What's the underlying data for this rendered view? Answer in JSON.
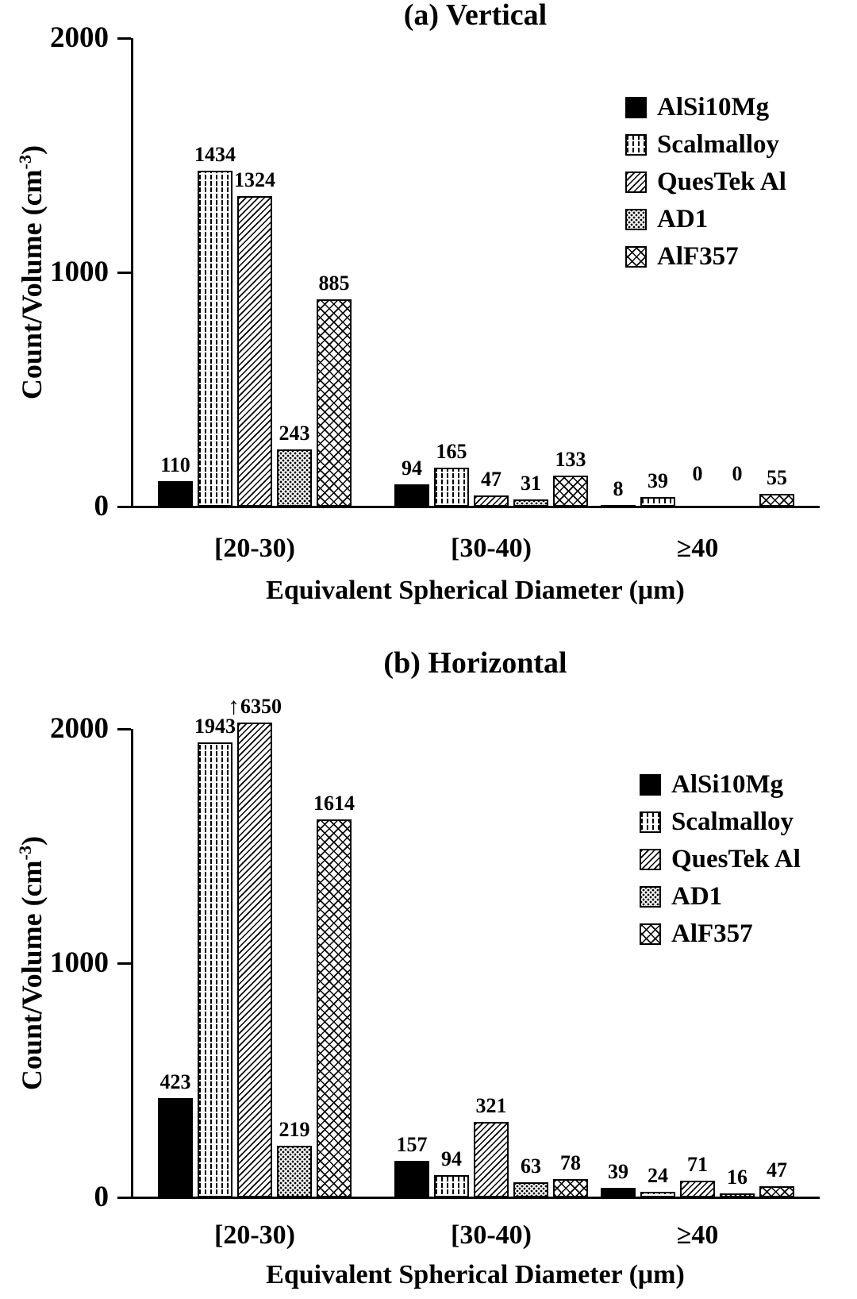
{
  "figure": {
    "background_color": "#ffffff",
    "ink_color": "#000000"
  },
  "chart_data": [
    {
      "type": "bar",
      "title": "(a) Vertical",
      "xlabel": "Equivalent Spherical Diameter (μm)",
      "ylabel_base": "Count/Volume (cm",
      "ylabel_sup": "-3",
      "ylabel_close": ")",
      "ymax": 2000,
      "grid": false,
      "legend_position": "top-right",
      "yticks": [
        {
          "value": 2000,
          "label": "2000"
        },
        {
          "value": 1000,
          "label": "1000"
        },
        {
          "value": 0,
          "label": "0"
        }
      ],
      "categories": [
        "[20-30)",
        "[30-40)",
        "≥40"
      ],
      "series": [
        {
          "name": "AlSi10Mg",
          "pattern": "solid-black",
          "values": [
            110,
            94,
            8
          ]
        },
        {
          "name": "Scalmalloy",
          "pattern": "dashed-columns",
          "values": [
            1434,
            165,
            39
          ]
        },
        {
          "name": "QuesTek Al",
          "pattern": "diagonal-hatch",
          "values": [
            1324,
            47,
            0
          ]
        },
        {
          "name": "AD1",
          "pattern": "dense-speckle",
          "values": [
            243,
            31,
            0
          ]
        },
        {
          "name": "AlF357",
          "pattern": "cross-hatch",
          "values": [
            885,
            133,
            55
          ]
        }
      ]
    },
    {
      "type": "bar",
      "title": "(b) Horizontal",
      "xlabel": "Equivalent Spherical Diameter (μm)",
      "ylabel_base": "Count/Volume (cm",
      "ylabel_sup": "-3",
      "ylabel_close": ")",
      "ymax": 2000,
      "grid": false,
      "legend_position": "top-right",
      "yticks": [
        {
          "value": 2000,
          "label": "2000"
        },
        {
          "value": 1000,
          "label": "1000"
        },
        {
          "value": 0,
          "label": "0"
        }
      ],
      "categories": [
        "[20-30)",
        "[30-40)",
        "≥40"
      ],
      "series": [
        {
          "name": "AlSi10Mg",
          "pattern": "solid-black",
          "values": [
            423,
            157,
            39
          ]
        },
        {
          "name": "Scalmalloy",
          "pattern": "dashed-columns",
          "values": [
            1943,
            94,
            24
          ]
        },
        {
          "name": "QuesTek Al",
          "pattern": "diagonal-hatch",
          "values": [
            6350,
            321,
            71
          ]
        },
        {
          "name": "AD1",
          "pattern": "dense-speckle",
          "values": [
            219,
            63,
            16
          ]
        },
        {
          "name": "AlF357",
          "pattern": "cross-hatch",
          "values": [
            1614,
            78,
            47
          ]
        }
      ],
      "off_scale": {
        "series_index": 2,
        "category_index": 0,
        "value": 6350,
        "arrow_icon": "↑"
      }
    }
  ]
}
